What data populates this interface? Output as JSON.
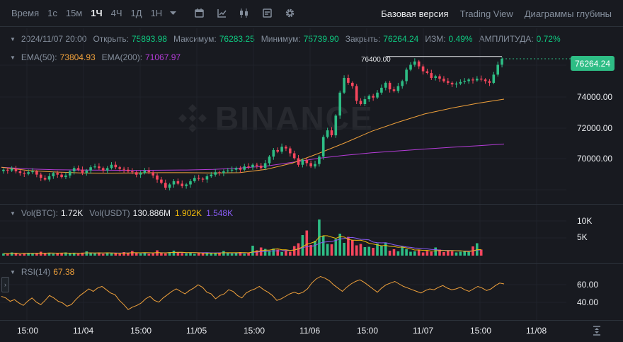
{
  "toolbar": {
    "time_label": "Время",
    "timeframes": [
      "1с",
      "15м",
      "1Ч",
      "4Ч",
      "1Д",
      "1Н"
    ],
    "active_timeframe": "1Ч",
    "views": [
      "Базовая версия",
      "Trading View",
      "Диаграммы глубины"
    ],
    "active_view": "Базовая версия"
  },
  "ohlc": {
    "datetime": "2024/11/07 20:00",
    "open_label": "Открыть:",
    "open": "75893.98",
    "high_label": "Максимум:",
    "high": "76283.25",
    "low_label": "Минимум:",
    "low": "75739.90",
    "close_label": "Закрыть:",
    "close": "76264.24",
    "change_label": "ИЗМ:",
    "change": "0.49%",
    "amplitude_label": "АМПЛИТУДА:",
    "amplitude": "0.72%"
  },
  "ema": {
    "ema50_label": "EMA(50):",
    "ema50": "73804.93",
    "ema200_label": "EMA(200):",
    "ema200": "71067.97"
  },
  "volume": {
    "btc_label": "Vol(BTC):",
    "btc": "1.72K",
    "usdt_label": "Vol(USDT)",
    "usdt": "130.886M",
    "ma1": "1.902K",
    "ma2": "1.548K"
  },
  "rsi": {
    "label": "RSI(14)",
    "value": "67.38"
  },
  "watermark": "BINANCE",
  "price_axis": [
    "74000.00",
    "72000.00",
    "70000.00"
  ],
  "current_price": "76264.24",
  "high_marker": "76400.00",
  "volume_axis": [
    "10K",
    "5K"
  ],
  "rsi_axis": [
    "60.00",
    "40.00"
  ],
  "time_axis": [
    "15:00",
    "11/04",
    "15:00",
    "11/05",
    "15:00",
    "11/06",
    "15:00",
    "11/07",
    "15:00",
    "11/08"
  ],
  "colors": {
    "up": "#2ebd85",
    "down": "#f6465d",
    "ema50": "#f0a13b",
    "ema200": "#b53cd8",
    "rsi": "#f0a13b",
    "background": "#181a20"
  },
  "chart_data": {
    "type": "candlestick",
    "interval": "1h",
    "price_ylim": [
      67500,
      77000
    ],
    "close_values": [
      69500,
      69450,
      69550,
      69400,
      69300,
      69250,
      69350,
      69400,
      69200,
      69000,
      68900,
      69100,
      69300,
      69200,
      69050,
      69150,
      69400,
      69600,
      69500,
      69300,
      69450,
      69650,
      69700,
      69600,
      69450,
      69600,
      69800,
      69650,
      69550,
      69500,
      69400,
      69350,
      69200,
      69300,
      69450,
      69350,
      69150,
      68900,
      68700,
      68400,
      68600,
      68800,
      68650,
      68500,
      68600,
      68800,
      69000,
      68950,
      68900,
      69100,
      69200,
      69350,
      69300,
      69400,
      69450,
      69500,
      69600,
      69500,
      69700,
      69650,
      69800,
      69750,
      69600,
      69900,
      70300,
      70700,
      70600,
      70900,
      70800,
      70500,
      70200,
      69800,
      70100,
      69900,
      69700,
      69850,
      70300,
      71500,
      71900,
      71600,
      72800,
      74200,
      75100,
      74800,
      74600,
      73700,
      73500,
      73800,
      74000,
      73900,
      74200,
      74500,
      74800,
      74400,
      74300,
      74600,
      74900,
      75600,
      75900,
      76100,
      75800,
      75500,
      75400,
      75100,
      75200,
      75050,
      74900,
      74800,
      74700,
      74750,
      74850,
      74900,
      75000,
      74950,
      75050,
      75000,
      74900,
      74800,
      75300,
      75900,
      76264
    ],
    "ema50_values": [
      69650,
      69450,
      69360,
      69300,
      69290,
      69300,
      69320,
      69320,
      69300,
      69320,
      69520,
      69900,
      70500,
      71150,
      71850,
      72400,
      72900,
      73250,
      73550,
      73804
    ],
    "ema200_values": [
      69650,
      69550,
      69500,
      69480,
      69470,
      69460,
      69470,
      69480,
      69520,
      69600,
      69720,
      69950,
      70200,
      70380,
      70530,
      70650,
      70760,
      70870,
      70960,
      71068
    ],
    "volume_ylim": [
      0,
      13000
    ],
    "volume_values": [
      600,
      500,
      900,
      700,
      400,
      650,
      800,
      550,
      700,
      1100,
      600,
      800,
      500,
      700,
      650,
      900,
      600,
      750,
      500,
      850,
      1200,
      700,
      600,
      900,
      500,
      800,
      650,
      700,
      550,
      1000,
      800,
      1300,
      700,
      600,
      900,
      500,
      650,
      1500,
      700,
      600,
      1000,
      1400,
      800,
      700,
      650,
      900,
      500,
      700,
      600,
      750,
      800,
      650,
      900,
      1300,
      700,
      600,
      800,
      1000,
      550,
      700,
      2800,
      1500,
      2300,
      1900,
      1200,
      2000,
      1700,
      1000,
      1400,
      1100,
      2700,
      3500,
      5800,
      7100,
      3000,
      4200,
      10200,
      5600,
      3300,
      3200,
      4700,
      6200,
      3600,
      5300,
      4400,
      2900,
      3300,
      2400,
      2500,
      2200,
      3400,
      2800,
      3700,
      1400,
      1800,
      1200,
      2600,
      1800,
      1100,
      1200,
      1600,
      900,
      1300,
      1100,
      2300,
      1700,
      1000,
      1400,
      1200,
      900,
      1100,
      1300,
      1000,
      2600,
      3500,
      1700
    ],
    "rsi_ylim": [
      25,
      85
    ],
    "rsi_values": [
      52,
      50,
      46,
      48,
      44,
      41,
      46,
      50,
      45,
      42,
      47,
      53,
      50,
      46,
      44,
      40,
      42,
      48,
      53,
      57,
      61,
      58,
      62,
      64,
      60,
      56,
      54,
      47,
      42,
      36,
      39,
      41,
      44,
      49,
      52,
      47,
      45,
      50,
      54,
      58,
      61,
      58,
      55,
      59,
      62,
      66,
      63,
      57,
      55,
      49,
      53,
      55,
      60,
      58,
      53,
      50,
      56,
      59,
      61,
      64,
      60,
      57,
      53,
      47,
      49,
      52,
      55,
      57,
      55,
      57,
      61,
      68,
      73,
      76,
      74,
      71,
      66,
      62,
      58,
      63,
      67,
      70,
      72,
      69,
      65,
      61,
      57,
      62,
      66,
      68,
      70,
      67,
      64,
      62,
      60,
      58,
      56,
      59,
      61,
      60,
      63,
      65,
      62,
      60,
      61,
      63,
      60,
      58,
      61,
      64,
      62,
      59,
      61,
      65,
      68,
      67
    ]
  }
}
